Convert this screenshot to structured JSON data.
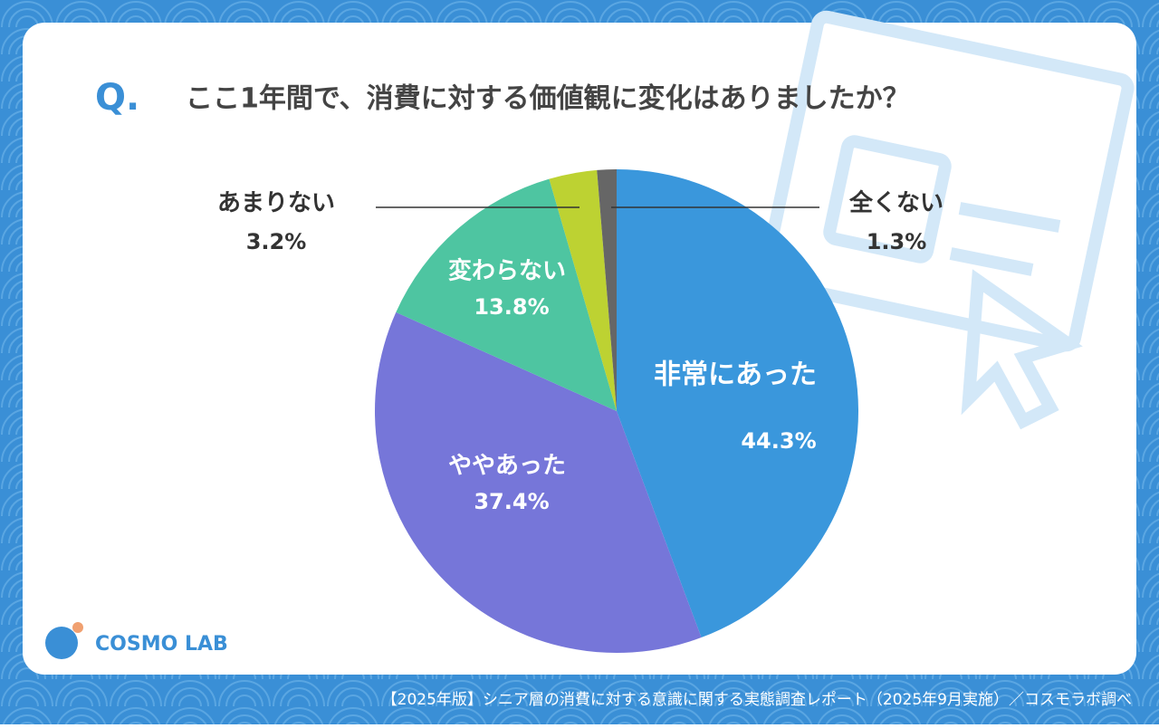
{
  "chart_data": {
    "type": "pie",
    "badge": "Q.",
    "title": "ここ1年間で、消費に対する価値観に変化はありましたか？",
    "categories": [
      "非常にあった",
      "ややあった",
      "変わらない",
      "あまりない",
      "全くない"
    ],
    "values": [
      44.3,
      37.4,
      13.8,
      3.2,
      1.3
    ],
    "value_labels": [
      "44.3%",
      "37.4%",
      "13.8%",
      "3.2%",
      "1.3%"
    ],
    "colors": [
      "#3a97dc",
      "#7676d9",
      "#4ec5a1",
      "#bdd232",
      "#666666"
    ],
    "logo": "COSMO LAB",
    "source": "【2025年版】シニア層の消費に対する意識に関する実態調査レポート（2025年9月実施）／コスモラボ調べ"
  }
}
